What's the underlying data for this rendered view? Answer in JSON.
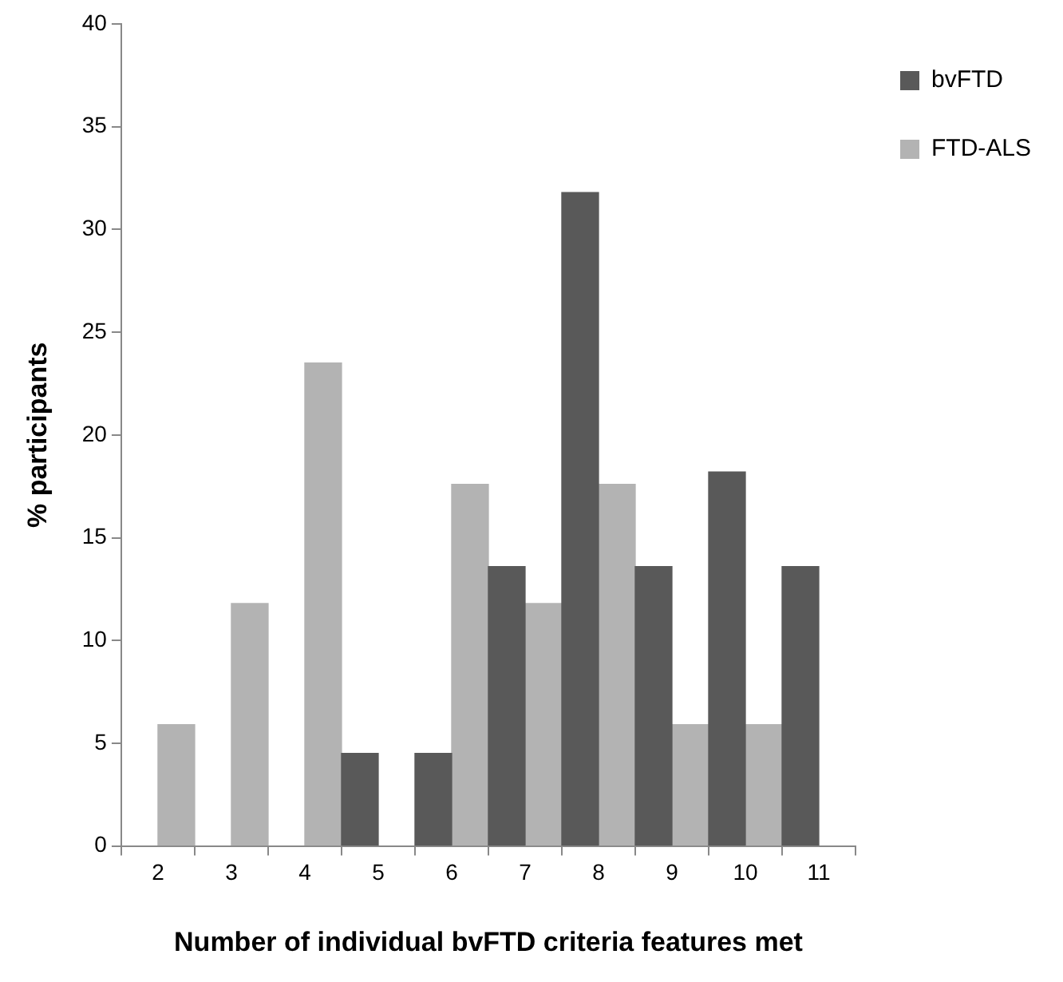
{
  "chart_data": {
    "type": "bar",
    "xlabel": "Number of individual bvFTD criteria features met",
    "ylabel": "% participants",
    "categories": [
      "2",
      "3",
      "4",
      "5",
      "6",
      "7",
      "8",
      "9",
      "10",
      "11"
    ],
    "series": [
      {
        "name": "bvFTD",
        "color": "#595959",
        "values": [
          null,
          null,
          null,
          4.5,
          4.5,
          13.6,
          31.8,
          13.6,
          18.2,
          13.6
        ]
      },
      {
        "name": "FTD-ALS",
        "color": "#b3b3b3",
        "values": [
          5.9,
          11.8,
          23.5,
          null,
          17.6,
          11.8,
          17.6,
          5.9,
          5.9,
          null
        ]
      }
    ],
    "ylim": [
      0,
      40
    ],
    "yticks": [
      0,
      5,
      10,
      15,
      20,
      25,
      30,
      35,
      40
    ],
    "grid": false,
    "legend": "top right"
  }
}
